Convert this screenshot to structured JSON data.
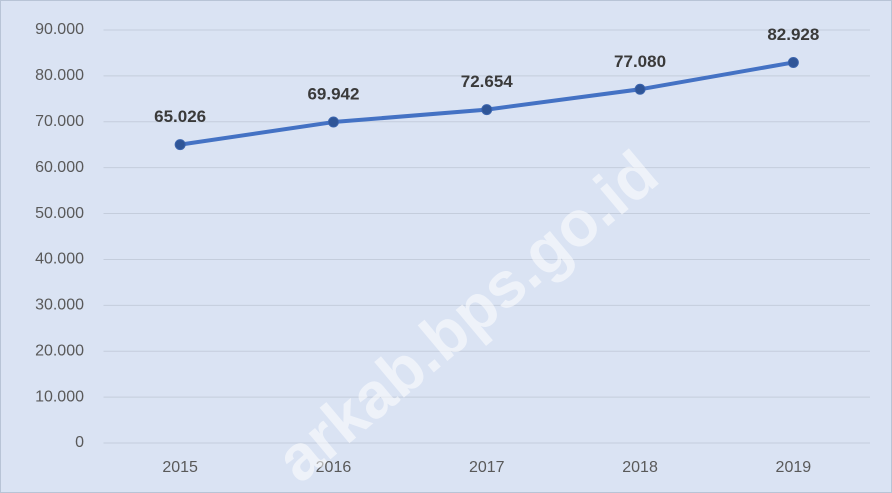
{
  "chart_data": {
    "type": "line",
    "categories": [
      "2015",
      "2016",
      "2017",
      "2018",
      "2019"
    ],
    "series": [
      {
        "color": "#4472c4",
        "values": [
          65026,
          69942,
          72654,
          77080,
          82928
        ],
        "value_labels": [
          "65.026",
          "69.942",
          "72.654",
          "77.080",
          "82.928"
        ]
      }
    ],
    "ylim": [
      0,
      90000
    ],
    "yticks": [
      0,
      {
        "value": 10000,
        "label": "10.000"
      },
      {
        "value": 20000,
        "label": "20.000"
      },
      {
        "value": 30000,
        "label": "30.000"
      },
      {
        "value": 40000,
        "label": "40.000"
      },
      {
        "value": 50000,
        "label": "50.000"
      },
      {
        "value": 60000,
        "label": "60.000"
      },
      {
        "value": 70000,
        "label": "70.000"
      },
      {
        "value": 80000,
        "label": "80.000"
      },
      {
        "value": 90000,
        "label": "90.000"
      }
    ],
    "grid": true,
    "watermark": "arkab.bps.go.id"
  }
}
